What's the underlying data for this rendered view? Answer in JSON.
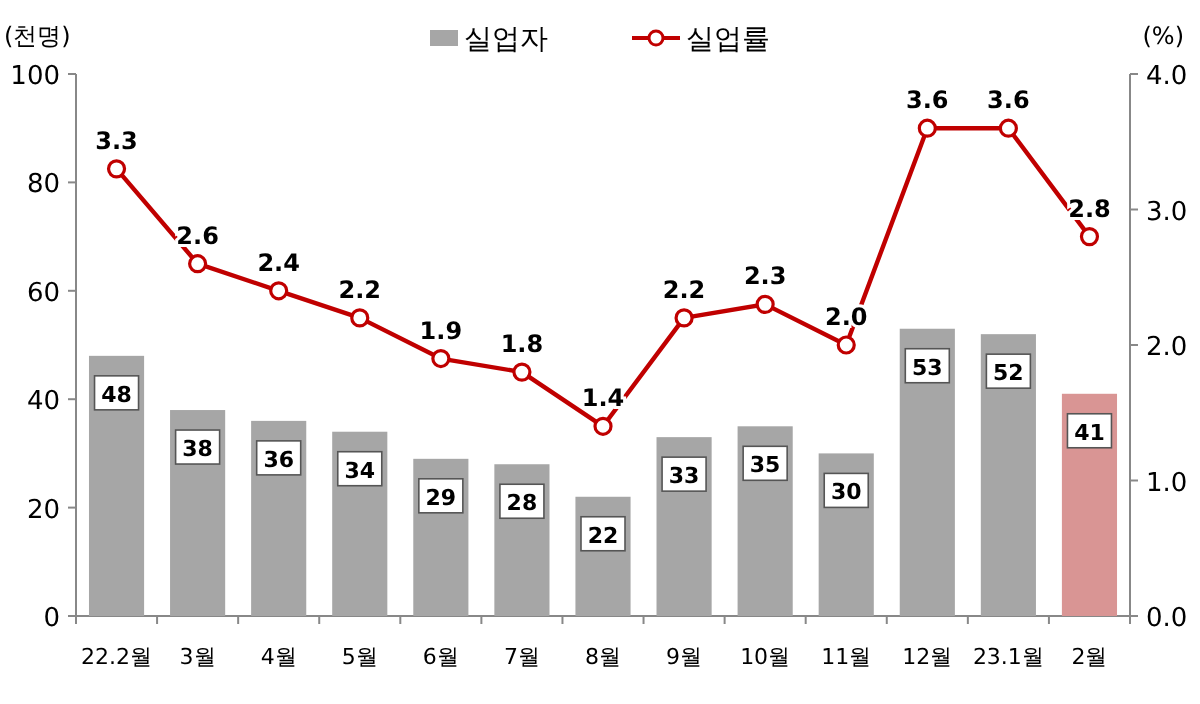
{
  "chart_data": {
    "type": "bar",
    "categories": [
      "22.2월",
      "3월",
      "4월",
      "5월",
      "6월",
      "7월",
      "8월",
      "9월",
      "10월",
      "11월",
      "12월",
      "23.1월",
      "2월"
    ],
    "ylabel": "(천명)",
    "y2label": "(%)",
    "ylim": [
      0,
      100
    ],
    "yticks": [
      0,
      20,
      40,
      60,
      80,
      100
    ],
    "y2lim": [
      0,
      4
    ],
    "y2ticks": [
      {
        "value": 0,
        "label": "0.0"
      },
      {
        "value": 1,
        "label": "1.0"
      },
      {
        "value": 2,
        "label": "2.0"
      },
      {
        "value": 3,
        "label": "3.0"
      },
      {
        "value": 4,
        "label": "4.0"
      }
    ],
    "legend": "top",
    "data_labels": true,
    "marker": "circle",
    "grid": false,
    "series": [
      {
        "name": "실업자",
        "color": "#a6a6a6",
        "colors": [
          "#a6a6a6",
          "#a6a6a6",
          "#a6a6a6",
          "#a6a6a6",
          "#a6a6a6",
          "#a6a6a6",
          "#a6a6a6",
          "#a6a6a6",
          "#a6a6a6",
          "#a6a6a6",
          "#a6a6a6",
          "#a6a6a6",
          "#d99594"
        ],
        "values": [
          48,
          38,
          36,
          34,
          29,
          28,
          22,
          33,
          35,
          30,
          53,
          52,
          41
        ]
      },
      {
        "name": "실업률",
        "type": "line",
        "axis": "y2",
        "color": "#c00000",
        "values": [
          3.3,
          2.6,
          2.4,
          2.2,
          1.9,
          1.8,
          1.4,
          2.2,
          2.3,
          2.0,
          3.6,
          3.6,
          2.8
        ],
        "value_labels": [
          "3.3",
          "2.6",
          "2.4",
          "2.2",
          "1.9",
          "1.8",
          "1.4",
          "2.2",
          "2.3",
          "2.0",
          "3.6",
          "3.6",
          "2.8"
        ]
      }
    ]
  }
}
